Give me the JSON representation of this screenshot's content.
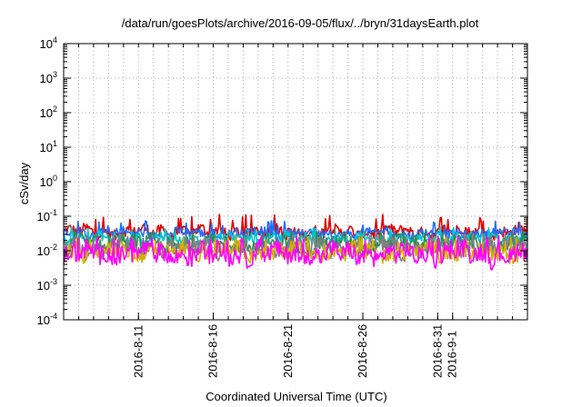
{
  "chart_data": {
    "type": "line",
    "title": "/data/run/goesPlots/archive/2016-09-05/flux/../bryn/31daysEarth.plot",
    "xlabel": "Coordinated Universal Time (UTC)",
    "ylabel": "cSv/day",
    "yscale": "log",
    "ylim": [
      0.0001,
      10000
    ],
    "xlim": [
      "2016-08-06",
      "2016-09-06"
    ],
    "grid": true,
    "legend": "none",
    "y_ticks": [
      {
        "base": "10",
        "exp": "-4"
      },
      {
        "base": "10",
        "exp": "-3"
      },
      {
        "base": "10",
        "exp": "-2"
      },
      {
        "base": "10",
        "exp": "-1"
      },
      {
        "base": "10",
        "exp": "0"
      },
      {
        "base": "10",
        "exp": "1"
      },
      {
        "base": "10",
        "exp": "2"
      },
      {
        "base": "10",
        "exp": "3"
      },
      {
        "base": "10",
        "exp": "4"
      }
    ],
    "x_ticks": [
      "2016-8-11",
      "2016-8-16",
      "2016-8-21",
      "2016-8-26",
      "2016-8-31",
      "2016-9-1"
    ],
    "series": [
      {
        "color": "#e00000",
        "level": 0.035,
        "spread": 0.35,
        "spike": 0.09
      },
      {
        "color": "#1f6fff",
        "level": 0.032,
        "spread": 0.25,
        "spike": 0.06
      },
      {
        "color": "#00c8c8",
        "level": 0.022,
        "spread": 0.3,
        "spike": 0.04
      },
      {
        "color": "#2e8b57",
        "level": 0.015,
        "spread": 0.45,
        "spike": 0.03
      },
      {
        "color": "#808080",
        "level": 0.012,
        "spread": 0.5,
        "spike": 0.025
      },
      {
        "color": "#d4b000",
        "level": 0.009,
        "spread": 0.45,
        "spike": 0.02
      },
      {
        "color": "#ff00ff",
        "level": 0.008,
        "spread": 0.55,
        "spike": 0.022
      }
    ]
  }
}
